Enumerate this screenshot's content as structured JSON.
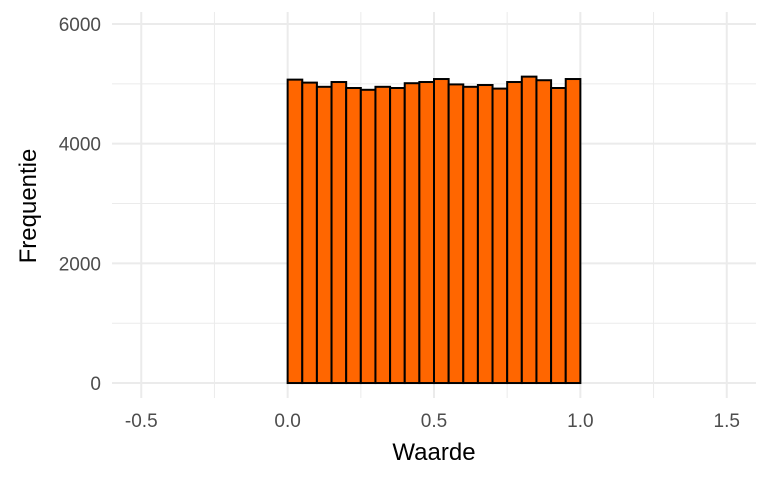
{
  "chart_data": {
    "type": "bar",
    "subtype": "histogram",
    "xlabel": "Waarde",
    "ylabel": "Frequentie",
    "xlim": [
      -0.6,
      1.6
    ],
    "ylim": [
      -250,
      6200
    ],
    "x_ticks": [
      -0.5,
      0.0,
      0.5,
      1.0,
      1.5
    ],
    "x_tick_labels": [
      "-0.5",
      "0.0",
      "0.5",
      "1.0",
      "1.5"
    ],
    "y_ticks": [
      0,
      2000,
      4000,
      6000
    ],
    "y_tick_labels": [
      "0",
      "2000",
      "4000",
      "6000"
    ],
    "x_minor_gridlines": [
      -0.25,
      0.25,
      0.75,
      1.25
    ],
    "y_minor_gridlines": [
      1000,
      3000,
      5000
    ],
    "grid": true,
    "bin_start": 0.0,
    "bin_width": 0.05,
    "values": [
      5070,
      5020,
      4950,
      5030,
      4930,
      4900,
      4950,
      4930,
      5010,
      5030,
      5080,
      4990,
      4950,
      4980,
      4920,
      5030,
      5120,
      5060,
      4930,
      5080
    ],
    "bar_fill": "#ff6600",
    "bar_stroke": "#000000",
    "grid_color": "#ebebeb"
  }
}
